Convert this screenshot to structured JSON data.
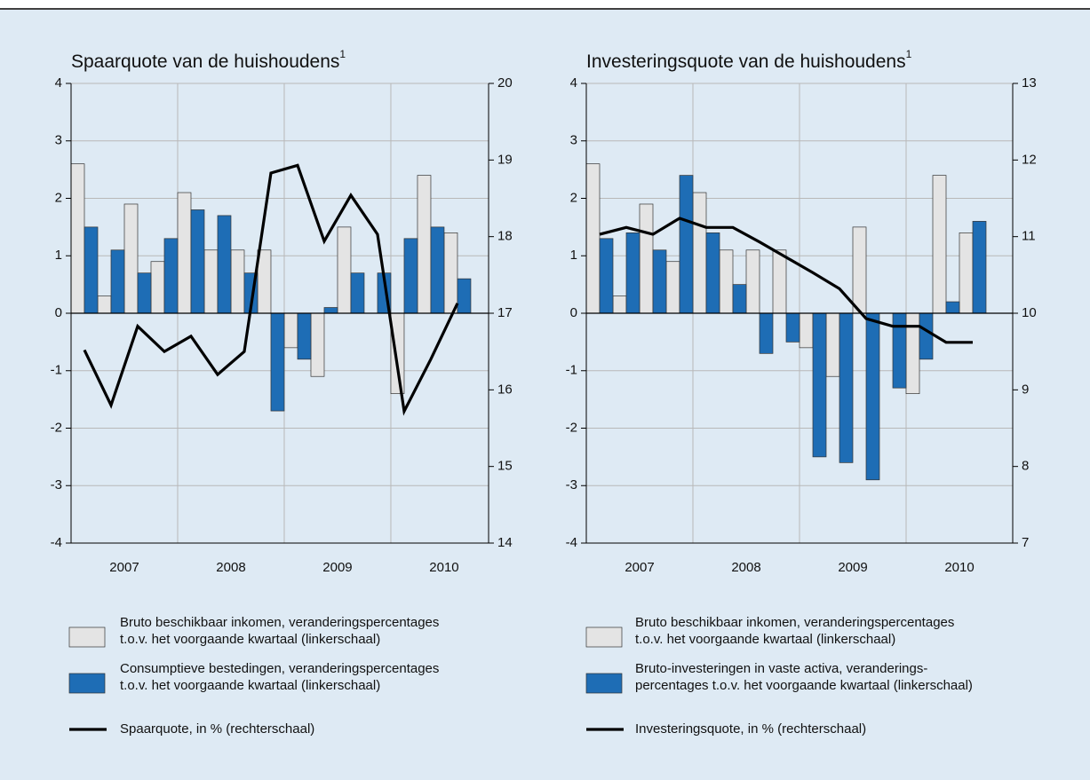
{
  "chart_data": [
    {
      "type": "bar",
      "title": "Spaarquote van de huishoudens",
      "title_footnote": "1",
      "x": [
        2007,
        2007.25,
        2007.5,
        2007.75,
        2008,
        2008.25,
        2008.5,
        2008.75,
        2009,
        2009.25,
        2009.5,
        2009.75,
        2010,
        2010.25,
        2010.5
      ],
      "xlim": [
        2007,
        2010.917
      ],
      "xticks": [
        {
          "value": 2007.5,
          "label": "2007"
        },
        {
          "value": 2008.5,
          "label": "2008"
        },
        {
          "value": 2009.5,
          "label": "2009"
        },
        {
          "value": 2010.5,
          "label": "2010"
        }
      ],
      "xgrid": [
        2008,
        2009,
        2010
      ],
      "ylim": [
        -4,
        4
      ],
      "yticks": [
        -4,
        -3,
        -2,
        -1,
        0,
        1,
        2,
        3,
        4
      ],
      "y2lim": [
        14,
        20
      ],
      "y2ticks": [
        14,
        15,
        16,
        17,
        18,
        19,
        20
      ],
      "grid": true,
      "series": [
        {
          "name": "Bruto beschikbaar inkomen, veranderingspercentages\nt.o.v. het voorgaande kwartaal (linkerschaal)",
          "type": "bar",
          "color": "#e4e4e4",
          "values": [
            2.6,
            0.3,
            1.9,
            0.9,
            2.1,
            1.1,
            1.1,
            1.1,
            -0.6,
            -1.1,
            1.5,
            0,
            -1.4,
            2.4,
            1.4
          ]
        },
        {
          "name": "Consumptieve bestedingen, veranderingspercentages\nt.o.v. het voorgaande kwartaal (linkerschaal)",
          "type": "bar",
          "color": "#1e6db5",
          "values": [
            1.5,
            1.1,
            0.7,
            1.3,
            1.8,
            1.7,
            0.7,
            -1.7,
            -0.8,
            0.1,
            0.7,
            0.7,
            1.3,
            1.5,
            0.6
          ]
        },
        {
          "name": "Spaarquote, in % (rechterschaal)",
          "type": "line",
          "axis": "y2",
          "color": "#000000",
          "values": [
            16.52,
            15.8,
            16.83,
            16.5,
            16.7,
            16.2,
            16.5,
            18.83,
            18.93,
            17.94,
            18.54,
            18.03,
            15.72,
            16.4,
            17.13
          ]
        }
      ]
    },
    {
      "type": "bar",
      "title": "Investeringsquote van de huishoudens",
      "title_footnote": "1",
      "x": [
        2007,
        2007.25,
        2007.5,
        2007.75,
        2008,
        2008.25,
        2008.5,
        2008.75,
        2009,
        2009.25,
        2009.5,
        2009.75,
        2010,
        2010.25,
        2010.5
      ],
      "xlim": [
        2007,
        2011
      ],
      "xticks": [
        {
          "value": 2007.5,
          "label": "2007"
        },
        {
          "value": 2008.5,
          "label": "2008"
        },
        {
          "value": 2009.5,
          "label": "2009"
        },
        {
          "value": 2010.5,
          "label": "2010"
        }
      ],
      "xgrid": [
        2008,
        2009,
        2010
      ],
      "ylim": [
        -4,
        4
      ],
      "yticks": [
        -4,
        -3,
        -2,
        -1,
        0,
        1,
        2,
        3,
        4
      ],
      "y2lim": [
        7,
        13
      ],
      "y2ticks": [
        7,
        8,
        9,
        10,
        11,
        12,
        13
      ],
      "grid": true,
      "series": [
        {
          "name": "Bruto beschikbaar inkomen, veranderingspercentages\nt.o.v. het voorgaande kwartaal (linkerschaal)",
          "type": "bar",
          "color": "#e4e4e4",
          "values": [
            2.6,
            0.3,
            1.9,
            0.9,
            2.1,
            1.1,
            1.1,
            1.1,
            -0.6,
            -1.1,
            1.5,
            0,
            -1.4,
            2.4,
            1.4
          ]
        },
        {
          "name": "Bruto-investeringen in vaste activa, veranderings-\npercentages t.o.v. het voorgaande kwartaal (linkerschaal)",
          "type": "bar",
          "color": "#1e6db5",
          "values": [
            1.3,
            1.4,
            1.1,
            2.4,
            1.4,
            0.5,
            -0.7,
            -0.5,
            -2.5,
            -2.6,
            -2.9,
            -1.3,
            -0.8,
            0.2,
            1.6
          ]
        },
        {
          "name": "Investeringsquote, in % (rechterschaal)",
          "type": "line",
          "axis": "y2",
          "color": "#000000",
          "values": [
            11.03,
            11.12,
            11.03,
            11.24,
            11.12,
            11.12,
            10.93,
            10.73,
            10.53,
            10.32,
            9.93,
            9.83,
            9.83,
            9.62,
            9.62
          ]
        }
      ]
    }
  ]
}
